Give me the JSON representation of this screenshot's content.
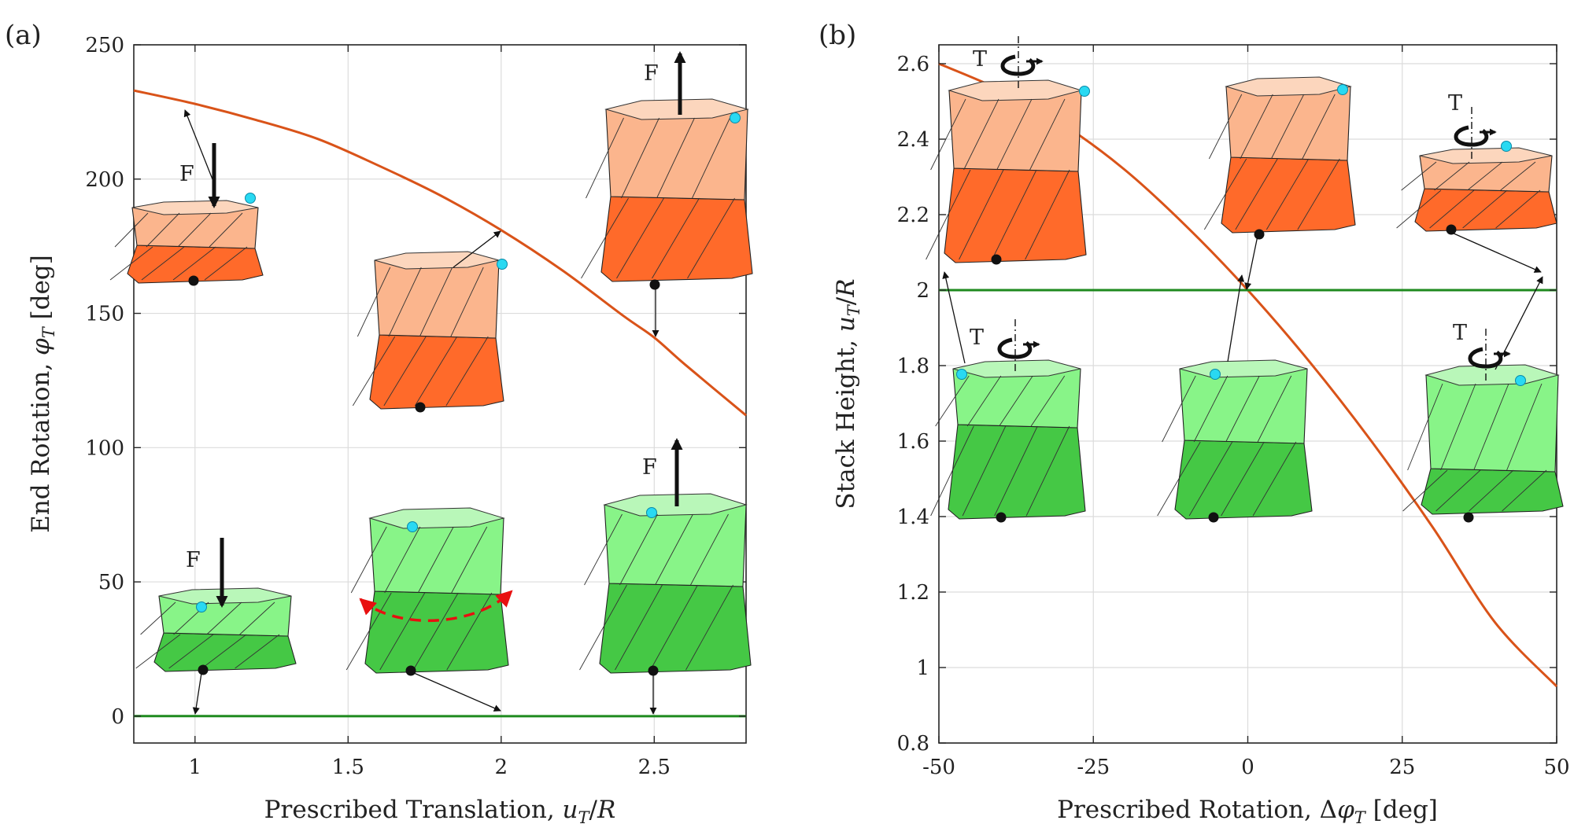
{
  "panels": {
    "a": {
      "label": "(a)"
    },
    "b": {
      "label": "(b)"
    }
  },
  "annotations": {
    "force_label": "F",
    "torque_label": "T"
  },
  "colors": {
    "orange_curve": "#d95319",
    "green_curve": "#1e8a1e",
    "orange_dark": "#ff6a2a",
    "orange_light": "#fbb58d",
    "orange_top": "#fcd6bd",
    "green_dark": "#45c845",
    "green_light": "#88f488",
    "green_top": "#b9f7b9",
    "node_cyan": "#29d9f2",
    "dashed_arrow": "#e81010"
  },
  "chart_data": [
    {
      "type": "line",
      "panel": "(a)",
      "xlabel": "Prescribed Translation, u_T/R",
      "ylabel": "End Rotation, φ_T [deg]",
      "xlim": [
        0.8,
        2.8
      ],
      "ylim": [
        -10,
        250
      ],
      "xticks": [
        1,
        1.5,
        2,
        2.5
      ],
      "xtick_labels": [
        "1",
        "1.5",
        "2",
        "2.5"
      ],
      "yticks": [
        0,
        50,
        100,
        150,
        200,
        250
      ],
      "ytick_labels": [
        "0",
        "50",
        "100",
        "150",
        "200",
        "250"
      ],
      "grid": true,
      "series": [
        {
          "name": "orange branch",
          "color": "#d95319",
          "x": [
            0.8,
            1.0,
            1.2,
            1.4,
            1.6,
            1.8,
            2.0,
            2.2,
            2.4,
            2.5,
            2.6,
            2.8
          ],
          "y": [
            233,
            228,
            222,
            215,
            205,
            194,
            181,
            166,
            149,
            141,
            131,
            112
          ]
        },
        {
          "name": "green branch",
          "color": "#1e8a1e",
          "x": [
            0.8,
            2.8
          ],
          "y": [
            0,
            0
          ]
        }
      ],
      "configurations": [
        {
          "branch": "orange",
          "at_x": 1.0,
          "height": 1.0,
          "force": "down"
        },
        {
          "branch": "orange",
          "at_x": 2.0,
          "height": 2.0,
          "force": "none"
        },
        {
          "branch": "orange",
          "at_x": 2.5,
          "height": 2.5,
          "force": "up"
        },
        {
          "branch": "green",
          "at_x": 1.0,
          "height": 1.0,
          "force": "down"
        },
        {
          "branch": "green",
          "at_x": 2.0,
          "height": 2.0,
          "force": "none"
        },
        {
          "branch": "green",
          "at_x": 2.5,
          "height": 2.5,
          "force": "up"
        }
      ]
    },
    {
      "type": "line",
      "panel": "(b)",
      "xlabel": "Prescribed Rotation, Δφ_T [deg]",
      "ylabel": "Stack Height, u_T/R",
      "xlim": [
        -50,
        50
      ],
      "ylim": [
        0.8,
        2.65
      ],
      "xticks": [
        -50,
        -25,
        0,
        25,
        50
      ],
      "xtick_labels": [
        "-50",
        "-25",
        "0",
        "25",
        "50"
      ],
      "yticks": [
        0.8,
        1,
        1.2,
        1.4,
        1.6,
        1.8,
        2,
        2.2,
        2.4,
        2.6
      ],
      "ytick_labels": [
        "0.8",
        "1",
        "1.2",
        "1.4",
        "1.6",
        "1.8",
        "2",
        "2.2",
        "2.4",
        "2.6"
      ],
      "grid": true,
      "series": [
        {
          "name": "orange branch",
          "color": "#d95319",
          "x": [
            -50,
            -40,
            -30,
            -20,
            -10,
            0,
            10,
            20,
            30,
            40,
            50
          ],
          "y": [
            2.6,
            2.53,
            2.44,
            2.32,
            2.17,
            2.0,
            1.81,
            1.6,
            1.37,
            1.12,
            0.95
          ]
        },
        {
          "name": "green branch",
          "color": "#1e8a1e",
          "x": [
            -50,
            50
          ],
          "y": [
            2,
            2
          ]
        }
      ],
      "configurations": [
        {
          "branch": "orange",
          "at_x": -45,
          "torque": "left"
        },
        {
          "branch": "orange",
          "at_x": 0,
          "torque": "none"
        },
        {
          "branch": "orange",
          "at_x": 45,
          "torque": "right"
        },
        {
          "branch": "green",
          "at_x": -45,
          "torque": "left"
        },
        {
          "branch": "green",
          "at_x": 0,
          "torque": "none"
        },
        {
          "branch": "green",
          "at_x": 45,
          "torque": "right"
        }
      ]
    }
  ]
}
